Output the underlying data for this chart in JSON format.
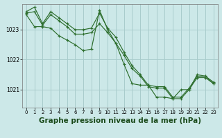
{
  "background_color": "#cce8e8",
  "grid_color": "#a8cccc",
  "line_color": "#2d6e2d",
  "marker_color": "#2d6e2d",
  "title": "Graphe pression niveau de la mer (hPa)",
  "title_fontsize": 7.5,
  "title_fontweight": "bold",
  "xlim": [
    -0.5,
    23.5
  ],
  "ylim": [
    1020.4,
    1023.85
  ],
  "yticks": [
    1021,
    1022,
    1023
  ],
  "xticks": [
    0,
    1,
    2,
    3,
    4,
    5,
    6,
    7,
    8,
    9,
    10,
    11,
    12,
    13,
    14,
    15,
    16,
    17,
    18,
    19,
    20,
    21,
    22,
    23
  ],
  "series": [
    {
      "x": [
        0,
        1,
        2,
        3,
        4,
        5,
        6,
        7,
        8,
        9,
        10,
        11,
        12,
        13,
        14,
        15,
        16,
        17,
        18,
        19,
        20,
        21,
        22,
        23
      ],
      "y": [
        1023.6,
        1023.75,
        1023.2,
        1023.6,
        1023.4,
        1023.2,
        1023.0,
        1023.0,
        1023.05,
        1023.55,
        1023.05,
        1022.75,
        1022.25,
        1021.8,
        1021.5,
        1021.15,
        1021.1,
        1021.1,
        1020.75,
        1020.75,
        1021.05,
        1021.45,
        1021.45,
        1021.25
      ]
    },
    {
      "x": [
        0,
        1,
        2,
        3,
        4,
        5,
        6,
        7,
        8,
        9,
        10,
        11,
        12,
        13,
        14,
        15,
        16,
        17,
        18,
        19,
        20,
        21,
        22,
        23
      ],
      "y": [
        1023.55,
        1023.6,
        1023.15,
        1023.5,
        1023.3,
        1023.1,
        1022.85,
        1022.85,
        1022.9,
        1023.2,
        1022.9,
        1022.55,
        1022.15,
        1021.7,
        1021.45,
        1021.1,
        1021.05,
        1021.05,
        1020.7,
        1020.7,
        1021.0,
        1021.4,
        1021.4,
        1021.2
      ]
    },
    {
      "x": [
        0,
        1,
        2,
        3,
        4,
        5,
        6,
        7,
        8,
        9,
        10,
        11,
        12,
        13,
        14,
        15,
        16,
        17,
        18,
        19,
        20,
        21,
        22,
        23
      ],
      "y": [
        1023.5,
        1023.1,
        1023.1,
        1023.05,
        1022.8,
        1022.65,
        1022.5,
        1022.3,
        1022.35,
        1023.65,
        1023.0,
        1022.55,
        1021.85,
        1021.2,
        1021.15,
        1021.15,
        1020.75,
        1020.75,
        1020.7,
        1021.0,
        1021.0,
        1021.5,
        1021.45,
        1021.2
      ]
    }
  ]
}
